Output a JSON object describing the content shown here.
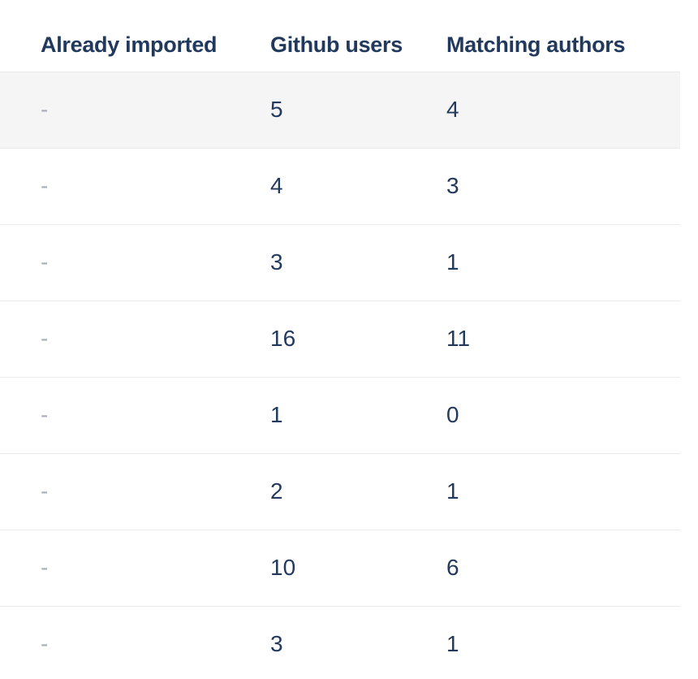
{
  "table": {
    "columns": [
      "Already imported",
      "Github users",
      "Matching authors"
    ],
    "rows": [
      {
        "cells": [
          "-",
          "5",
          "4"
        ],
        "highlighted": true
      },
      {
        "cells": [
          "-",
          "4",
          "3"
        ],
        "highlighted": false
      },
      {
        "cells": [
          "-",
          "3",
          "1"
        ],
        "highlighted": false
      },
      {
        "cells": [
          "-",
          "16",
          "11"
        ],
        "highlighted": false
      },
      {
        "cells": [
          "-",
          "1",
          "0"
        ],
        "highlighted": false
      },
      {
        "cells": [
          "-",
          "2",
          "1"
        ],
        "highlighted": false
      },
      {
        "cells": [
          "-",
          "10",
          "6"
        ],
        "highlighted": false
      },
      {
        "cells": [
          "-",
          "3",
          "1"
        ],
        "highlighted": false
      }
    ]
  },
  "colors": {
    "header_text": "#21395c",
    "cell_text": "#233a5e",
    "muted_text": "#a8aebb",
    "row_highlight_bg": "#f5f5f6",
    "divider": "#e9eaec",
    "page_bg": "#ffffff"
  }
}
